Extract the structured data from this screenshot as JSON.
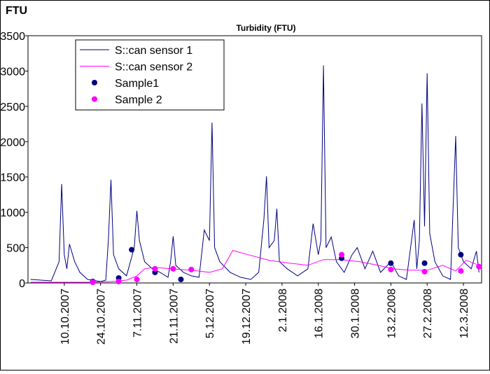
{
  "chart_data": {
    "type": "line",
    "title": "Turbidity (FTU)",
    "y_label": "FTU",
    "ylim": [
      0,
      3500
    ],
    "yticks": [
      0,
      500,
      1000,
      1500,
      2000,
      2500,
      3000,
      3500
    ],
    "xlim": [
      "2007-09-26",
      "2008-03-19"
    ],
    "xticks": [
      {
        "value": "2007-10-10",
        "label": "10.10.2007"
      },
      {
        "value": "2007-10-24",
        "label": "24.10.2007"
      },
      {
        "value": "2007-11-07",
        "label": "7.11.2007"
      },
      {
        "value": "2007-11-21",
        "label": "21.11.2007"
      },
      {
        "value": "2007-12-05",
        "label": "5.12.2007"
      },
      {
        "value": "2007-12-19",
        "label": "19.12.2007"
      },
      {
        "value": "2008-01-02",
        "label": "2.1.2008"
      },
      {
        "value": "2008-01-16",
        "label": "16.1.2008"
      },
      {
        "value": "2008-01-30",
        "label": "30.1.2008"
      },
      {
        "value": "2008-02-13",
        "label": "13.2.2008"
      },
      {
        "value": "2008-02-27",
        "label": "27.2.2008"
      },
      {
        "value": "2008-03-12",
        "label": "12.3.2008"
      }
    ],
    "grid": false,
    "legend": "top-left",
    "series": [
      {
        "name": "S::can sensor 1",
        "color": "#000080",
        "mark": "line",
        "x": [
          "2007-09-27",
          "2007-10-05",
          "2007-10-08",
          "2007-10-09",
          "2007-10-10",
          "2007-10-11",
          "2007-10-12",
          "2007-10-14",
          "2007-10-16",
          "2007-10-19",
          "2007-10-24",
          "2007-10-26",
          "2007-10-27",
          "2007-10-28",
          "2007-10-29",
          "2007-10-31",
          "2007-11-03",
          "2007-11-06",
          "2007-11-07",
          "2007-11-08",
          "2007-11-10",
          "2007-11-13",
          "2007-11-16",
          "2007-11-19",
          "2007-11-20",
          "2007-11-21",
          "2007-11-22",
          "2007-11-25",
          "2007-11-28",
          "2007-12-01",
          "2007-12-03",
          "2007-12-05",
          "2007-12-06",
          "2007-12-07",
          "2007-12-09",
          "2007-12-13",
          "2007-12-17",
          "2007-12-21",
          "2007-12-24",
          "2007-12-26",
          "2007-12-27",
          "2007-12-28",
          "2007-12-30",
          "2007-12-31",
          "2008-01-01",
          "2008-01-04",
          "2008-01-08",
          "2008-01-12",
          "2008-01-14",
          "2008-01-16",
          "2008-01-17",
          "2008-01-18",
          "2008-01-19",
          "2008-01-21",
          "2008-01-23",
          "2008-01-26",
          "2008-01-29",
          "2008-01-31",
          "2008-02-03",
          "2008-02-06",
          "2008-02-09",
          "2008-02-13",
          "2008-02-16",
          "2008-02-19",
          "2008-02-22",
          "2008-02-23",
          "2008-02-24",
          "2008-02-25",
          "2008-02-26",
          "2008-02-27",
          "2008-02-28",
          "2008-03-01",
          "2008-03-04",
          "2008-03-07",
          "2008-03-09",
          "2008-03-10",
          "2008-03-12",
          "2008-03-15",
          "2008-03-17",
          "2008-03-18"
        ],
        "values": [
          50,
          30,
          300,
          1400,
          400,
          200,
          550,
          300,
          150,
          50,
          20,
          40,
          600,
          1460,
          400,
          200,
          100,
          500,
          1020,
          600,
          300,
          200,
          150,
          80,
          300,
          660,
          250,
          150,
          100,
          80,
          750,
          600,
          2270,
          500,
          300,
          150,
          80,
          50,
          150,
          900,
          1510,
          500,
          600,
          1050,
          300,
          200,
          100,
          200,
          840,
          400,
          600,
          3080,
          500,
          650,
          300,
          150,
          400,
          500,
          200,
          450,
          150,
          300,
          100,
          50,
          890,
          200,
          600,
          2540,
          800,
          2970,
          700,
          300,
          100,
          50,
          2080,
          500,
          300,
          200,
          450,
          150
        ]
      },
      {
        "name": "S::can sensor 2",
        "color": "#ff00ff",
        "mark": "line",
        "x": [
          "2007-09-27",
          "2007-10-20",
          "2007-10-28",
          "2007-11-03",
          "2007-11-07",
          "2007-11-10",
          "2007-11-14",
          "2007-11-20",
          "2007-11-28",
          "2007-12-05",
          "2007-12-10",
          "2007-12-14",
          "2007-12-20",
          "2007-12-28",
          "2008-01-05",
          "2008-01-12",
          "2008-01-18",
          "2008-01-25",
          "2008-02-01",
          "2008-02-08",
          "2008-02-14",
          "2008-02-20",
          "2008-02-27",
          "2008-03-04",
          "2008-03-09",
          "2008-03-13",
          "2008-03-18"
        ],
        "values": [
          10,
          10,
          20,
          40,
          100,
          200,
          220,
          200,
          180,
          150,
          200,
          460,
          400,
          320,
          280,
          250,
          330,
          330,
          300,
          250,
          200,
          180,
          180,
          250,
          170,
          320,
          250
        ]
      },
      {
        "name": "Sample1",
        "color": "#000080",
        "mark": "dot",
        "x": [
          "2007-10-21",
          "2007-10-31",
          "2007-11-05",
          "2007-11-14",
          "2007-11-24",
          "2008-01-25",
          "2008-02-13",
          "2008-02-26",
          "2008-03-11"
        ],
        "values": [
          20,
          70,
          470,
          150,
          50,
          350,
          280,
          280,
          400
        ]
      },
      {
        "name": "Sample 2",
        "color": "#ff00ff",
        "mark": "dot",
        "x": [
          "2007-10-21",
          "2007-10-31",
          "2007-11-07",
          "2007-11-14",
          "2007-11-21",
          "2007-11-28",
          "2008-01-25",
          "2008-02-13",
          "2008-02-26",
          "2008-03-11",
          "2008-03-18"
        ],
        "values": [
          10,
          20,
          50,
          200,
          200,
          190,
          400,
          190,
          160,
          170,
          230
        ]
      }
    ]
  }
}
